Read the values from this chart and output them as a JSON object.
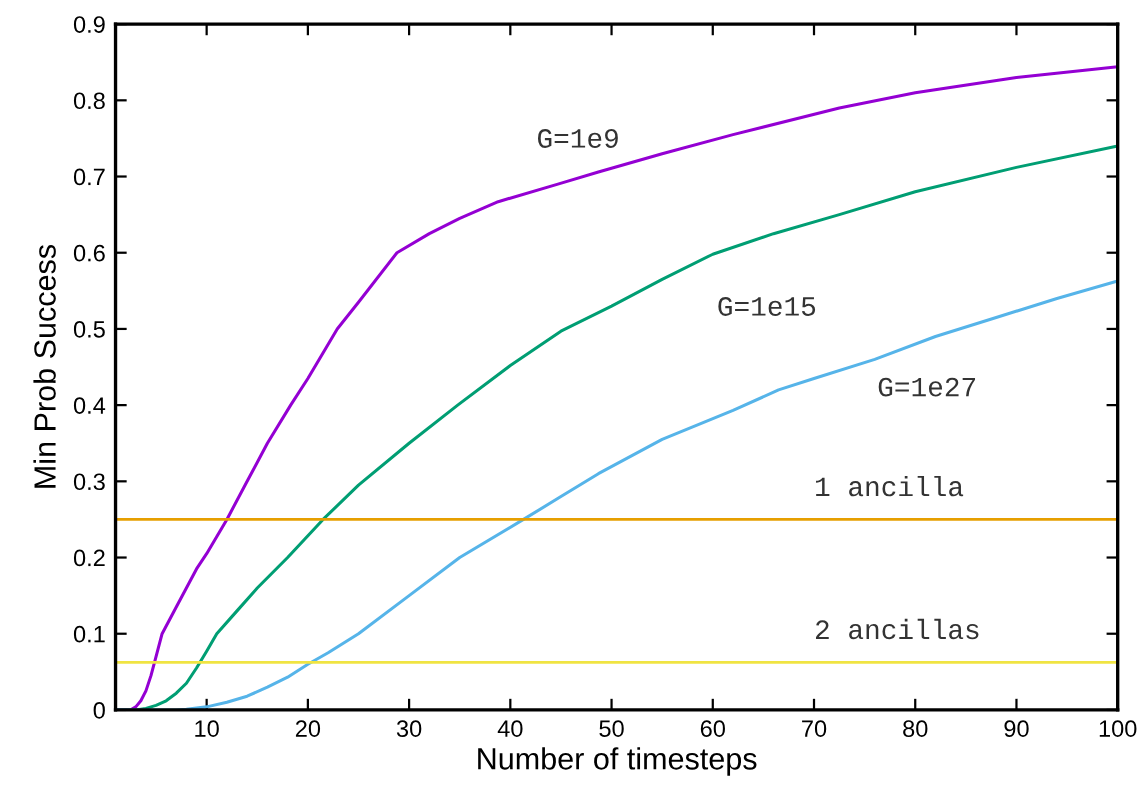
{
  "chart_data": {
    "type": "line",
    "xlabel": "Number of timesteps",
    "ylabel": "Min Prob Success",
    "xlim": [
      1,
      100
    ],
    "ylim": [
      0,
      0.9
    ],
    "xticks": [
      10,
      20,
      30,
      40,
      50,
      60,
      70,
      80,
      90,
      100
    ],
    "yticks": [
      0,
      0.1,
      0.2,
      0.3,
      0.4,
      0.5,
      0.6,
      0.7,
      0.8,
      0.9
    ],
    "grid": false,
    "legend": false,
    "marker": "none",
    "line_style": "solid",
    "series": [
      {
        "name": "G=1e9",
        "color": "#9400d3",
        "x": [
          1,
          2.5,
          3,
          3.5,
          4,
          4.5,
          5,
          5.6,
          7,
          8,
          9,
          10,
          12,
          14,
          16,
          18.3,
          20,
          22.9,
          25,
          28.8,
          32,
          35,
          38.8,
          44.7,
          48.7,
          55,
          62,
          72.5,
          80,
          90,
          100
        ],
        "values": [
          0,
          0,
          0.004,
          0.012,
          0.025,
          0.045,
          0.07,
          0.1,
          0.135,
          0.16,
          0.185,
          0.205,
          0.25,
          0.3,
          0.35,
          0.4,
          0.435,
          0.5,
          0.535,
          0.6,
          0.625,
          0.645,
          0.667,
          0.69,
          0.706,
          0.73,
          0.755,
          0.79,
          0.81,
          0.83,
          0.844
        ]
      },
      {
        "name": "G=1e15",
        "color": "#009e73",
        "x": [
          1,
          3,
          4,
          5,
          6,
          7,
          8,
          9,
          10,
          11,
          13,
          15,
          18,
          21.5,
          25,
          30,
          34.8,
          40,
          45,
          50,
          55,
          60,
          66,
          72.5,
          80,
          90,
          100
        ],
        "values": [
          0,
          0,
          0.002,
          0.006,
          0.012,
          0.022,
          0.035,
          0.055,
          0.077,
          0.1,
          0.13,
          0.16,
          0.2,
          0.25,
          0.295,
          0.35,
          0.4,
          0.452,
          0.497,
          0.53,
          0.565,
          0.598,
          0.625,
          0.65,
          0.68,
          0.712,
          0.74
        ]
      },
      {
        "name": "G=1e27",
        "color": "#56b4e9",
        "x": [
          1,
          7,
          8,
          10,
          12,
          14,
          16,
          18,
          20,
          22,
          25,
          30,
          35,
          41.3,
          45,
          48.7,
          55,
          62,
          66.5,
          70,
          76,
          82,
          88,
          94,
          100
        ],
        "values": [
          0,
          0,
          0.001,
          0.004,
          0.01,
          0.018,
          0.03,
          0.043,
          0.06,
          0.075,
          0.1,
          0.15,
          0.2,
          0.25,
          0.28,
          0.31,
          0.355,
          0.393,
          0.42,
          0.435,
          0.46,
          0.49,
          0.515,
          0.54,
          0.563
        ]
      }
    ],
    "ref_lines": [
      {
        "axis": "y",
        "value": 0.25,
        "color": "#e69f00",
        "label": "1 ancilla"
      },
      {
        "axis": "y",
        "value": 0.0625,
        "color": "#f0e442",
        "label": "2 ancillas"
      }
    ]
  }
}
